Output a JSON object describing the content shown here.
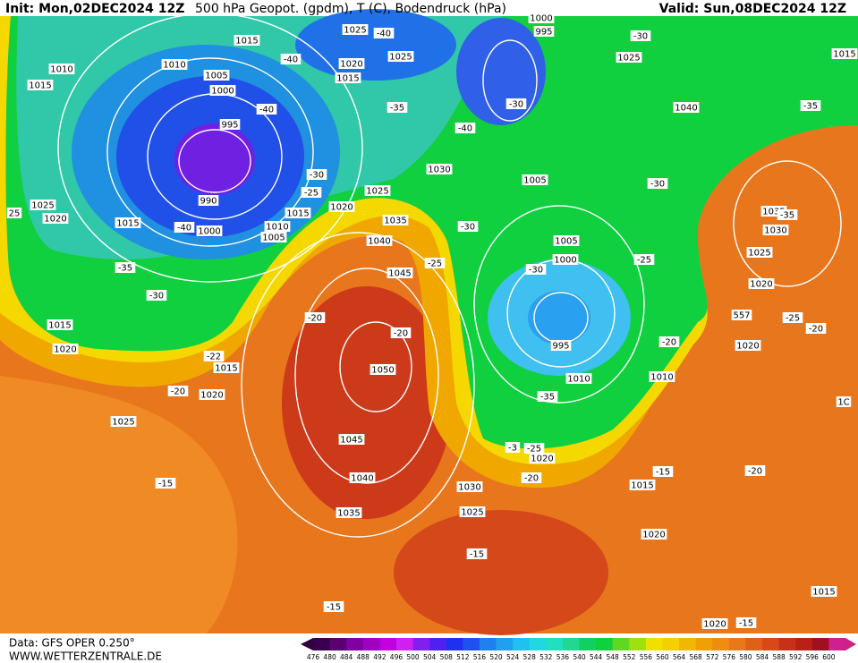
{
  "header": {
    "init": "Init: Mon,02DEC2024 12Z",
    "title": "500 hPa Geopot. (gpdm), T (C), Bodendruck (hPa)",
    "valid": "Valid: Sun,08DEC2024 12Z"
  },
  "isobar_labels": [
    "1015",
    "1010",
    "1005",
    "1000",
    "995",
    "990",
    "1000",
    "1015",
    "1025",
    "1020",
    "1010",
    "1015",
    "1025",
    "1020",
    "1015",
    "1025",
    "1010",
    "1005",
    "1015",
    "1020",
    "1025",
    "1035",
    "1040",
    "1045",
    "1050",
    "1045",
    "1040",
    "1035",
    "1030",
    "1005",
    "1005",
    "1000",
    "995",
    "1010",
    "1010",
    "995",
    "1000",
    "1025",
    "1040",
    "1035",
    "1030",
    "1025",
    "1020",
    "1020",
    "1015",
    "1020",
    "1015",
    "1020",
    "1025",
    "1020",
    "1030",
    "1025",
    "1015",
    "1020",
    "1015",
    "1020",
    "1015"
  ],
  "thickness_labels": [
    "557"
  ],
  "temperature_labels": [
    "-40",
    "-40",
    "-40",
    "-35",
    "-40",
    "-30",
    "-30",
    "-35",
    "-30",
    "-35",
    "-30",
    "-25",
    "-40",
    "-35",
    "-30",
    "25",
    "-30",
    "-25",
    "-30",
    "-25",
    "-25",
    "-20",
    "-20",
    "-20",
    "-20",
    "-22",
    "-20",
    "-35",
    "-3",
    "-25",
    "-20",
    "-15",
    "-20",
    "-15",
    "-15",
    "-15",
    "-15",
    "1C"
  ],
  "colorbar": {
    "labels": [
      476,
      480,
      484,
      488,
      492,
      496,
      500,
      504,
      508,
      512,
      516,
      520,
      524,
      528,
      532,
      536,
      540,
      544,
      548,
      552,
      556,
      560,
      564,
      568,
      572,
      576,
      580,
      584,
      588,
      592,
      596,
      600
    ]
  },
  "footer": {
    "source": "Data: GFS OPER 0.250°",
    "site": "WWW.WETTERZENTRALE.DE"
  }
}
